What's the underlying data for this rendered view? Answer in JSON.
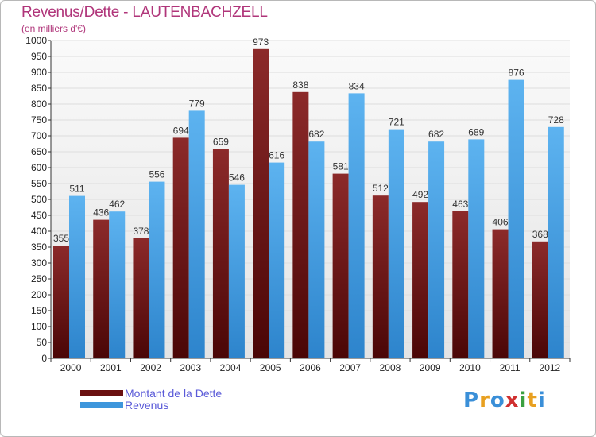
{
  "chart_data": {
    "type": "bar",
    "title": "Revenus/Dette - LAUTENBACHZELL",
    "subtitle": "(en milliers d'€)",
    "categories": [
      "2000",
      "2001",
      "2002",
      "2003",
      "2004",
      "2005",
      "2006",
      "2007",
      "2008",
      "2009",
      "2010",
      "2011",
      "2012"
    ],
    "series": [
      {
        "name": "Montant de la Dette",
        "color": "#7a1a1a",
        "values": [
          355,
          436,
          378,
          694,
          659,
          973,
          838,
          581,
          512,
          492,
          463,
          406,
          368
        ]
      },
      {
        "name": "Revenus",
        "color": "#4da6e8",
        "values": [
          511,
          462,
          556,
          779,
          546,
          616,
          682,
          834,
          721,
          682,
          689,
          876,
          728
        ]
      }
    ],
    "ylim": [
      0,
      1000
    ],
    "ytick_step": 50,
    "grid": true,
    "legend": "bottom-left"
  },
  "logo": {
    "letters": [
      "P",
      "r",
      "o",
      "x",
      "i",
      "t",
      "i"
    ]
  },
  "colors": {
    "title": "#b0357a",
    "legend_text": "#5a5ad8",
    "axis": "#333333",
    "grid": "#dddddd",
    "plot_bg": "#f2f2f2"
  }
}
